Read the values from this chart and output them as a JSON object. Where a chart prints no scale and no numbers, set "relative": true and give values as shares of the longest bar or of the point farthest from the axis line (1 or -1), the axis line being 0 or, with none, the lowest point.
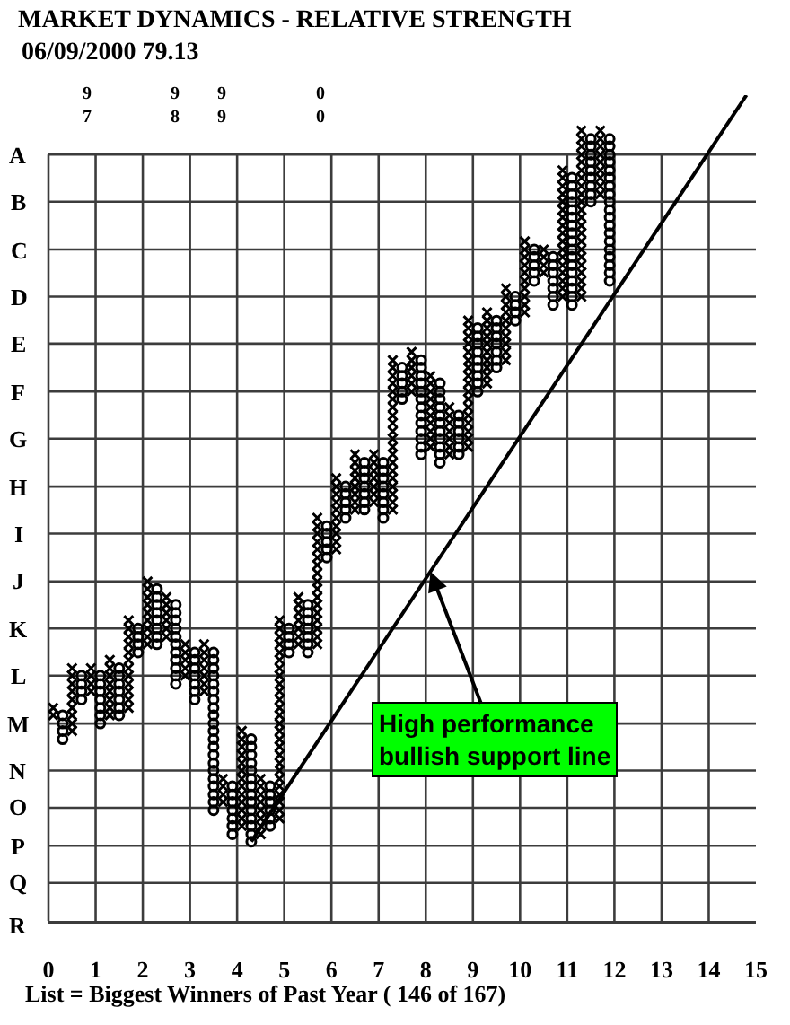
{
  "chart_data": {
    "type": "scatter",
    "relative": true,
    "title": "MARKET DYNAMICS - RELATIVE STRENGTH",
    "subtitle": "06/09/2000 79.13",
    "xlabel": "List = Biggest Winners of Past Year ( 146 of 167)",
    "xlim": [
      0,
      15
    ],
    "xticks": [
      0,
      1,
      2,
      3,
      4,
      5,
      6,
      7,
      8,
      9,
      10,
      11,
      12,
      13,
      14,
      15
    ],
    "grid": "x",
    "ref_lines": [
      {
        "axis": "y",
        "value": 0.928,
        "label": "A"
      },
      {
        "axis": "y",
        "value": 0.871,
        "label": "B"
      },
      {
        "axis": "y",
        "value": 0.813,
        "label": "C"
      },
      {
        "axis": "y",
        "value": 0.756,
        "label": "D"
      },
      {
        "axis": "y",
        "value": 0.699,
        "label": "E"
      },
      {
        "axis": "y",
        "value": 0.641,
        "label": "F"
      },
      {
        "axis": "y",
        "value": 0.584,
        "label": "G"
      },
      {
        "axis": "y",
        "value": 0.526,
        "label": "H"
      },
      {
        "axis": "y",
        "value": 0.469,
        "label": "I"
      },
      {
        "axis": "y",
        "value": 0.411,
        "label": "J"
      },
      {
        "axis": "y",
        "value": 0.354,
        "label": "K"
      },
      {
        "axis": "y",
        "value": 0.297,
        "label": "L"
      },
      {
        "axis": "y",
        "value": 0.239,
        "label": "M"
      },
      {
        "axis": "y",
        "value": 0.182,
        "label": "N"
      },
      {
        "axis": "y",
        "value": 0.137,
        "label": "O"
      },
      {
        "axis": "y",
        "value": 0.091,
        "label": "P"
      },
      {
        "axis": "y",
        "value": 0.046,
        "label": "Q"
      }
    ],
    "annotations": [
      "9\n7",
      "9\n8",
      "9\n9",
      "0\n0",
      "R",
      {
        "text": "High performance\nbullish support line",
        "x": 8.1,
        "y": 0.423
      }
    ],
    "series": [
      {
        "marker": "cross",
        "color": "#000000",
        "x": [
          0.1,
          0.1,
          0.5,
          0.5,
          0.5,
          0.5,
          0.5,
          0.5,
          0.5,
          0.5,
          0.5,
          0.9,
          0.9,
          0.9,
          0.9,
          1.3,
          1.3,
          1.3,
          1.3,
          1.3,
          1.3,
          1.3,
          1.3,
          1.7,
          1.7,
          1.7,
          1.7,
          1.7,
          1.7,
          1.7,
          1.7,
          1.7,
          1.7,
          1.7,
          1.7,
          2.1,
          2.1,
          2.1,
          2.1,
          2.1,
          2.1,
          2.1,
          2.1,
          2.1,
          2.5,
          2.5,
          2.5,
          2.5,
          2.5,
          2.5,
          2.9,
          2.9,
          2.9,
          2.9,
          2.9,
          3.3,
          3.3,
          3.3,
          3.3,
          3.3,
          3.3,
          3.3,
          3.7,
          3.7,
          3.7,
          3.7,
          4.1,
          4.1,
          4.1,
          4.1,
          4.1,
          4.1,
          4.1,
          4.1,
          4.1,
          4.1,
          4.1,
          4.1,
          4.1,
          4.5,
          4.5,
          4.5,
          4.5,
          4.5,
          4.5,
          4.5,
          4.5,
          4.9,
          4.9,
          4.9,
          4.9,
          4.9,
          4.9,
          4.9,
          4.9,
          4.9,
          4.9,
          4.9,
          4.9,
          4.9,
          4.9,
          4.9,
          4.9,
          4.9,
          4.9,
          4.9,
          4.9,
          4.9,
          4.9,
          4.9,
          4.9,
          4.9,
          4.9,
          5.3,
          5.3,
          5.3,
          5.3,
          5.3,
          5.3,
          5.3,
          5.7,
          5.7,
          5.7,
          5.7,
          5.7,
          5.7,
          5.7,
          5.7,
          5.7,
          5.7,
          5.7,
          5.7,
          5.7,
          5.7,
          5.7,
          5.7,
          5.7,
          6.1,
          6.1,
          6.1,
          6.1,
          6.1,
          6.1,
          6.1,
          6.1,
          6.1,
          6.1,
          6.5,
          6.5,
          6.5,
          6.5,
          6.5,
          6.5,
          6.5,
          6.5,
          6.9,
          6.9,
          6.9,
          6.9,
          6.9,
          6.9,
          6.9,
          7.3,
          7.3,
          7.3,
          7.3,
          7.3,
          7.3,
          7.3,
          7.3,
          7.3,
          7.3,
          7.3,
          7.3,
          7.3,
          7.3,
          7.3,
          7.3,
          7.3,
          7.3,
          7.3,
          7.3,
          7.7,
          7.7,
          7.7,
          7.7,
          7.7,
          7.7,
          8.1,
          8.1,
          8.1,
          8.1,
          8.1,
          8.1,
          8.1,
          8.1,
          8.1,
          8.1,
          8.5,
          8.5,
          8.5,
          8.5,
          8.5,
          8.5,
          8.5,
          8.9,
          8.9,
          8.9,
          8.9,
          8.9,
          8.9,
          8.9,
          8.9,
          8.9,
          8.9,
          8.9,
          8.9,
          8.9,
          8.9,
          8.9,
          8.9,
          8.9,
          9.3,
          9.3,
          9.3,
          9.3,
          9.3,
          9.3,
          9.3,
          9.3,
          9.3,
          9.3,
          9.7,
          9.7,
          9.7,
          9.7,
          9.7,
          9.7,
          9.7,
          9.7,
          9.7,
          9.7,
          10.1,
          10.1,
          10.1,
          10.1,
          10.1,
          10.1,
          10.1,
          10.1,
          10.1,
          10.1,
          10.5,
          10.5,
          10.5,
          10.5,
          10.9,
          10.9,
          10.9,
          10.9,
          10.9,
          10.9,
          10.9,
          10.9,
          10.9,
          10.9,
          10.9,
          10.9,
          10.9,
          10.9,
          10.9,
          10.9,
          10.9,
          11.3,
          11.3,
          11.3,
          11.3,
          11.3,
          11.3,
          11.3,
          11.3,
          11.3,
          11.3,
          11.3,
          11.3,
          11.3,
          11.3,
          11.3,
          11.3,
          11.3,
          11.3,
          11.3,
          11.3,
          11.3,
          11.3,
          11.7,
          11.7,
          11.7,
          11.7,
          11.7,
          11.7,
          11.7,
          11.7,
          11.7
        ],
        "values": [
          0.249,
          0.258,
          0.23,
          0.239,
          0.249,
          0.258,
          0.268,
          0.278,
          0.287,
          0.297,
          0.306,
          0.278,
          0.287,
          0.297,
          0.306,
          0.249,
          0.258,
          0.268,
          0.278,
          0.287,
          0.297,
          0.306,
          0.316,
          0.258,
          0.268,
          0.278,
          0.287,
          0.297,
          0.306,
          0.316,
          0.325,
          0.335,
          0.344,
          0.354,
          0.364,
          0.335,
          0.344,
          0.354,
          0.364,
          0.373,
          0.383,
          0.392,
          0.402,
          0.411,
          0.344,
          0.354,
          0.364,
          0.373,
          0.383,
          0.392,
          0.297,
          0.306,
          0.316,
          0.325,
          0.335,
          0.278,
          0.287,
          0.297,
          0.306,
          0.316,
          0.325,
          0.335,
          0.144,
          0.153,
          0.163,
          0.172,
          0.115,
          0.124,
          0.134,
          0.144,
          0.153,
          0.163,
          0.172,
          0.182,
          0.191,
          0.201,
          0.211,
          0.22,
          0.23,
          0.105,
          0.115,
          0.124,
          0.134,
          0.144,
          0.153,
          0.163,
          0.172,
          0.124,
          0.134,
          0.144,
          0.153,
          0.163,
          0.172,
          0.182,
          0.191,
          0.201,
          0.211,
          0.22,
          0.23,
          0.239,
          0.249,
          0.258,
          0.268,
          0.278,
          0.287,
          0.297,
          0.306,
          0.316,
          0.325,
          0.335,
          0.344,
          0.354,
          0.364,
          0.335,
          0.344,
          0.354,
          0.364,
          0.373,
          0.383,
          0.392,
          0.335,
          0.344,
          0.354,
          0.364,
          0.373,
          0.383,
          0.392,
          0.402,
          0.411,
          0.421,
          0.431,
          0.44,
          0.45,
          0.459,
          0.469,
          0.478,
          0.488,
          0.45,
          0.459,
          0.469,
          0.478,
          0.488,
          0.498,
          0.507,
          0.517,
          0.526,
          0.536,
          0.498,
          0.507,
          0.517,
          0.526,
          0.536,
          0.545,
          0.555,
          0.565,
          0.507,
          0.517,
          0.526,
          0.536,
          0.545,
          0.555,
          0.565,
          0.498,
          0.507,
          0.517,
          0.526,
          0.536,
          0.545,
          0.555,
          0.565,
          0.574,
          0.584,
          0.593,
          0.603,
          0.612,
          0.622,
          0.632,
          0.641,
          0.651,
          0.66,
          0.67,
          0.679,
          0.641,
          0.651,
          0.66,
          0.67,
          0.679,
          0.689,
          0.574,
          0.584,
          0.593,
          0.603,
          0.612,
          0.622,
          0.632,
          0.641,
          0.651,
          0.66,
          0.565,
          0.574,
          0.584,
          0.593,
          0.603,
          0.612,
          0.622,
          0.574,
          0.584,
          0.593,
          0.603,
          0.612,
          0.622,
          0.632,
          0.641,
          0.651,
          0.66,
          0.67,
          0.679,
          0.689,
          0.699,
          0.708,
          0.718,
          0.727,
          0.651,
          0.66,
          0.67,
          0.679,
          0.689,
          0.699,
          0.708,
          0.718,
          0.727,
          0.737,
          0.679,
          0.689,
          0.699,
          0.708,
          0.718,
          0.727,
          0.737,
          0.746,
          0.756,
          0.766,
          0.737,
          0.746,
          0.756,
          0.766,
          0.775,
          0.785,
          0.794,
          0.804,
          0.813,
          0.823,
          0.785,
          0.794,
          0.804,
          0.813,
          0.756,
          0.766,
          0.775,
          0.785,
          0.794,
          0.804,
          0.813,
          0.823,
          0.833,
          0.842,
          0.852,
          0.861,
          0.871,
          0.88,
          0.89,
          0.9,
          0.909,
          0.756,
          0.766,
          0.775,
          0.785,
          0.794,
          0.804,
          0.813,
          0.823,
          0.833,
          0.842,
          0.852,
          0.861,
          0.871,
          0.88,
          0.89,
          0.9,
          0.909,
          0.919,
          0.928,
          0.938,
          0.947,
          0.957,
          0.88,
          0.89,
          0.9,
          0.909,
          0.919,
          0.928,
          0.938,
          0.947,
          0.957
        ]
      },
      {
        "marker": "circle",
        "color": "#000000",
        "x": [
          0.3,
          0.3,
          0.3,
          0.3,
          0.7,
          0.7,
          0.7,
          0.7,
          1.1,
          1.1,
          1.1,
          1.1,
          1.1,
          1.1,
          1.1,
          1.5,
          1.5,
          1.5,
          1.5,
          1.5,
          1.5,
          1.5,
          1.9,
          1.9,
          1.9,
          1.9,
          2.3,
          2.3,
          2.3,
          2.3,
          2.3,
          2.3,
          2.3,
          2.3,
          2.7,
          2.7,
          2.7,
          2.7,
          2.7,
          2.7,
          2.7,
          2.7,
          2.7,
          2.7,
          2.7,
          3.1,
          3.1,
          3.1,
          3.1,
          3.1,
          3.1,
          3.1,
          3.5,
          3.5,
          3.5,
          3.5,
          3.5,
          3.5,
          3.5,
          3.5,
          3.5,
          3.5,
          3.5,
          3.5,
          3.5,
          3.5,
          3.5,
          3.5,
          3.5,
          3.5,
          3.5,
          3.5,
          3.5,
          3.9,
          3.9,
          3.9,
          3.9,
          3.9,
          3.9,
          3.9,
          4.3,
          4.3,
          4.3,
          4.3,
          4.3,
          4.3,
          4.3,
          4.3,
          4.3,
          4.3,
          4.3,
          4.3,
          4.3,
          4.3,
          4.7,
          4.7,
          4.7,
          4.7,
          4.7,
          4.7,
          5.1,
          5.1,
          5.1,
          5.1,
          5.5,
          5.5,
          5.5,
          5.5,
          5.5,
          5.5,
          5.5,
          5.9,
          5.9,
          5.9,
          5.9,
          5.9,
          6.3,
          6.3,
          6.3,
          6.3,
          6.3,
          6.7,
          6.7,
          6.7,
          6.7,
          6.7,
          6.7,
          6.7,
          7.1,
          7.1,
          7.1,
          7.1,
          7.1,
          7.1,
          7.1,
          7.1,
          7.5,
          7.5,
          7.5,
          7.5,
          7.5,
          7.9,
          7.9,
          7.9,
          7.9,
          7.9,
          7.9,
          7.9,
          7.9,
          7.9,
          7.9,
          7.9,
          7.9,
          7.9,
          8.3,
          8.3,
          8.3,
          8.3,
          8.3,
          8.3,
          8.3,
          8.3,
          8.3,
          8.3,
          8.3,
          8.7,
          8.7,
          8.7,
          8.7,
          8.7,
          8.7,
          9.1,
          9.1,
          9.1,
          9.1,
          9.1,
          9.1,
          9.1,
          9.1,
          9.1,
          9.5,
          9.5,
          9.5,
          9.5,
          9.5,
          9.5,
          9.5,
          9.9,
          9.9,
          9.9,
          9.9,
          10.3,
          10.3,
          10.3,
          10.3,
          10.3,
          10.7,
          10.7,
          10.7,
          10.7,
          10.7,
          10.7,
          10.7,
          11.1,
          11.1,
          11.1,
          11.1,
          11.1,
          11.1,
          11.1,
          11.1,
          11.1,
          11.1,
          11.1,
          11.1,
          11.1,
          11.1,
          11.1,
          11.1,
          11.1,
          11.5,
          11.5,
          11.5,
          11.5,
          11.5,
          11.5,
          11.5,
          11.5,
          11.5,
          11.9,
          11.9,
          11.9,
          11.9,
          11.9,
          11.9,
          11.9,
          11.9,
          11.9,
          11.9,
          11.9,
          11.9,
          11.9,
          11.9,
          11.9,
          11.9,
          11.9,
          11.9,
          11.9
        ],
        "values": [
          0.22,
          0.23,
          0.239,
          0.249,
          0.268,
          0.278,
          0.287,
          0.297,
          0.239,
          0.249,
          0.258,
          0.268,
          0.278,
          0.287,
          0.297,
          0.249,
          0.258,
          0.268,
          0.278,
          0.287,
          0.297,
          0.306,
          0.325,
          0.335,
          0.344,
          0.354,
          0.335,
          0.344,
          0.354,
          0.364,
          0.373,
          0.383,
          0.392,
          0.402,
          0.287,
          0.297,
          0.306,
          0.316,
          0.325,
          0.335,
          0.344,
          0.354,
          0.364,
          0.373,
          0.383,
          0.268,
          0.278,
          0.287,
          0.297,
          0.306,
          0.316,
          0.325,
          0.134,
          0.144,
          0.153,
          0.163,
          0.172,
          0.182,
          0.191,
          0.201,
          0.211,
          0.22,
          0.23,
          0.239,
          0.249,
          0.258,
          0.268,
          0.278,
          0.287,
          0.297,
          0.306,
          0.316,
          0.325,
          0.105,
          0.115,
          0.124,
          0.134,
          0.144,
          0.153,
          0.163,
          0.096,
          0.105,
          0.115,
          0.124,
          0.134,
          0.144,
          0.153,
          0.163,
          0.172,
          0.182,
          0.191,
          0.201,
          0.211,
          0.22,
          0.115,
          0.124,
          0.134,
          0.144,
          0.153,
          0.163,
          0.325,
          0.335,
          0.344,
          0.354,
          0.325,
          0.335,
          0.344,
          0.354,
          0.364,
          0.373,
          0.383,
          0.44,
          0.45,
          0.459,
          0.469,
          0.478,
          0.488,
          0.498,
          0.507,
          0.517,
          0.526,
          0.498,
          0.507,
          0.517,
          0.526,
          0.536,
          0.545,
          0.555,
          0.488,
          0.498,
          0.507,
          0.517,
          0.526,
          0.536,
          0.545,
          0.555,
          0.632,
          0.641,
          0.651,
          0.66,
          0.67,
          0.565,
          0.574,
          0.584,
          0.593,
          0.603,
          0.612,
          0.622,
          0.632,
          0.641,
          0.651,
          0.66,
          0.67,
          0.679,
          0.555,
          0.565,
          0.574,
          0.584,
          0.593,
          0.603,
          0.612,
          0.622,
          0.632,
          0.641,
          0.651,
          0.565,
          0.574,
          0.584,
          0.593,
          0.603,
          0.612,
          0.641,
          0.651,
          0.66,
          0.67,
          0.679,
          0.689,
          0.699,
          0.708,
          0.718,
          0.67,
          0.679,
          0.689,
          0.699,
          0.708,
          0.718,
          0.727,
          0.727,
          0.737,
          0.746,
          0.756,
          0.775,
          0.785,
          0.794,
          0.804,
          0.813,
          0.746,
          0.756,
          0.766,
          0.775,
          0.785,
          0.794,
          0.804,
          0.746,
          0.756,
          0.766,
          0.775,
          0.785,
          0.794,
          0.804,
          0.813,
          0.823,
          0.833,
          0.842,
          0.852,
          0.861,
          0.871,
          0.88,
          0.89,
          0.9,
          0.871,
          0.88,
          0.89,
          0.9,
          0.909,
          0.919,
          0.928,
          0.938,
          0.947,
          0.775,
          0.785,
          0.794,
          0.804,
          0.813,
          0.823,
          0.833,
          0.842,
          0.852,
          0.861,
          0.871,
          0.88,
          0.89,
          0.9,
          0.909,
          0.919,
          0.928,
          0.938,
          0.947
        ]
      },
      {
        "type": "line",
        "color": "#000000",
        "line_style": "solid",
        "x": [
          4.3,
          14.8
        ],
        "values": [
          0.096,
          1
        ]
      }
    ]
  }
}
